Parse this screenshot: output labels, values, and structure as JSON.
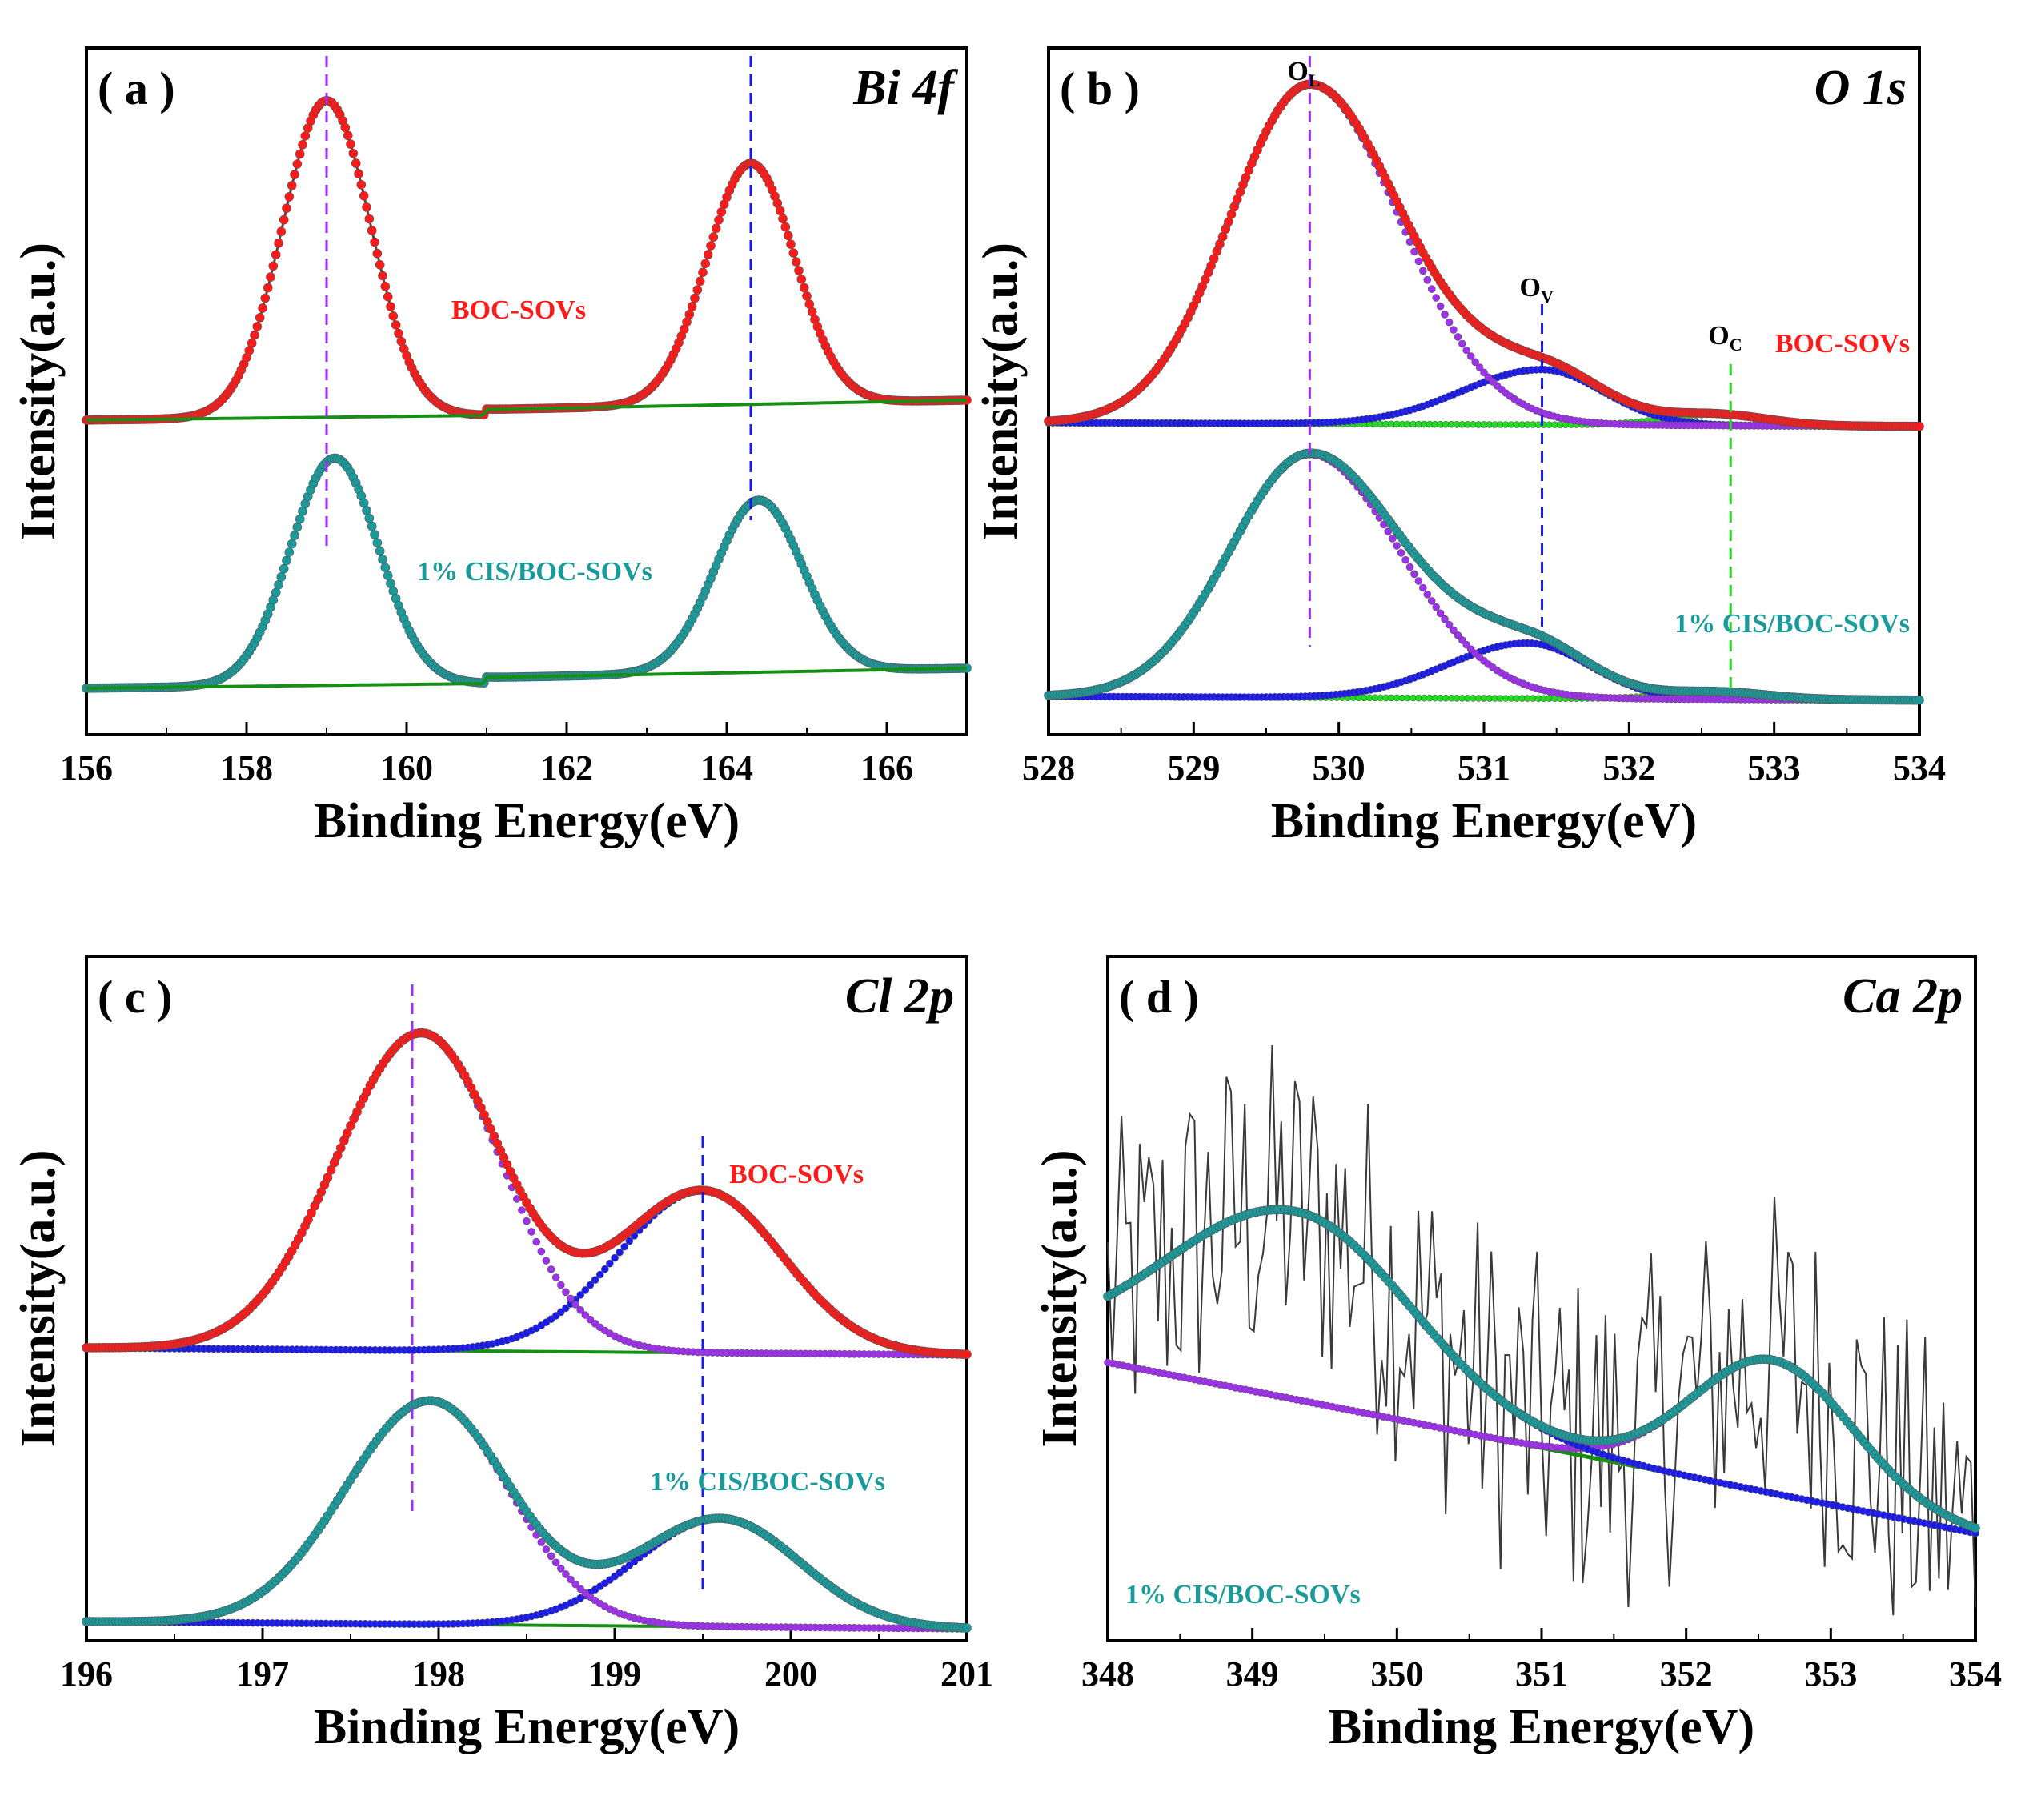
{
  "figure": {
    "xlabel": "Binding Energy(eV)",
    "ylabel": "Intensity(a.u.)"
  },
  "colors": {
    "boc": "#ff1a1a",
    "cis": "#1a9a9a",
    "background_line": "#159015",
    "fit_violet": "#a030f0",
    "fit_blue": "#1a1aee",
    "fit_green": "#22dd22",
    "raw": "#4a4a4a"
  },
  "chart_data": [
    {
      "type": "line",
      "panel": "( a )",
      "title": "Bi 4f",
      "xlim": [
        156,
        167
      ],
      "xticks": [
        "156",
        "158",
        "160",
        "162",
        "164",
        "166"
      ],
      "series_labels": [
        "BOC-SOVs",
        "1% CIS/BOC-SOVs"
      ],
      "peak_markers": [
        {
          "x": 159.0,
          "color": "violet"
        },
        {
          "x": 164.3,
          "color": "blue"
        }
      ],
      "series": [
        {
          "name": "BOC-SOVs",
          "peaks": [
            {
              "center": 159.0,
              "height": 0.92
            },
            {
              "center": 164.3,
              "height": 0.7
            }
          ],
          "baseline": [
            0.02,
            0.07
          ]
        },
        {
          "name": "1% CIS/BOC-SOVs",
          "peaks": [
            {
              "center": 159.1,
              "height": 0.66
            },
            {
              "center": 164.4,
              "height": 0.5
            }
          ],
          "baseline": [
            0.02,
            0.07
          ]
        }
      ]
    },
    {
      "type": "line",
      "panel": "( b )",
      "title": "O 1s",
      "xlim": [
        528,
        534
      ],
      "xticks": [
        "528",
        "529",
        "530",
        "531",
        "532",
        "533",
        "534"
      ],
      "series_labels": [
        "BOC-SOVs",
        "1% CIS/BOC-SOVs"
      ],
      "peak_labels": [
        {
          "label": "O",
          "sub": "L",
          "x": 529.8
        },
        {
          "label": "O",
          "sub": "V",
          "x": 531.4
        },
        {
          "label": "O",
          "sub": "C",
          "x": 532.7
        }
      ],
      "peak_markers": [
        {
          "x": 529.8,
          "color": "violet"
        },
        {
          "x": 531.4,
          "color": "blue"
        },
        {
          "x": 532.7,
          "color": "green"
        }
      ],
      "series": [
        {
          "name": "BOC-SOVs",
          "components": [
            {
              "label": "OL",
              "center": 529.8,
              "height": 0.92
            },
            {
              "label": "OV",
              "center": 531.4,
              "height": 0.15
            },
            {
              "label": "OC",
              "center": 532.6,
              "height": 0.03
            }
          ]
        },
        {
          "name": "1% CIS/BOC-SOVs",
          "components": [
            {
              "label": "OL",
              "center": 529.8,
              "height": 0.66
            },
            {
              "label": "OV",
              "center": 531.3,
              "height": 0.15
            },
            {
              "label": "OC",
              "center": 532.6,
              "height": 0.02
            }
          ]
        }
      ]
    },
    {
      "type": "line",
      "panel": "( c )",
      "title": "Cl 2p",
      "xlim": [
        196,
        201
      ],
      "xticks": [
        "196",
        "197",
        "198",
        "199",
        "200",
        "201"
      ],
      "series_labels": [
        "BOC-SOVs",
        "1% CIS/BOC-SOVs"
      ],
      "peak_markers": [
        {
          "x": 197.85,
          "color": "violet"
        },
        {
          "x": 199.5,
          "color": "blue"
        }
      ],
      "series": [
        {
          "name": "BOC-SOVs",
          "peaks": [
            {
              "center": 197.9,
              "height": 0.88
            },
            {
              "center": 199.5,
              "height": 0.45
            }
          ]
        },
        {
          "name": "1% CIS/BOC-SOVs",
          "peaks": [
            {
              "center": 197.95,
              "height": 0.62
            },
            {
              "center": 199.6,
              "height": 0.3
            }
          ]
        }
      ]
    },
    {
      "type": "line",
      "panel": "( d )",
      "title": "Ca 2p",
      "xlim": [
        348,
        354
      ],
      "xticks": [
        "348",
        "349",
        "350",
        "351",
        "352",
        "353",
        "354"
      ],
      "series_labels": [
        "1% CIS/BOC-SOVs"
      ],
      "series": [
        {
          "name": "1% CIS/BOC-SOVs",
          "peaks": [
            {
              "center": 349.3,
              "height": 0.48
            },
            {
              "center": 352.6,
              "height": 0.34
            }
          ],
          "baseline": [
            0.44,
            0.17
          ]
        }
      ]
    }
  ]
}
